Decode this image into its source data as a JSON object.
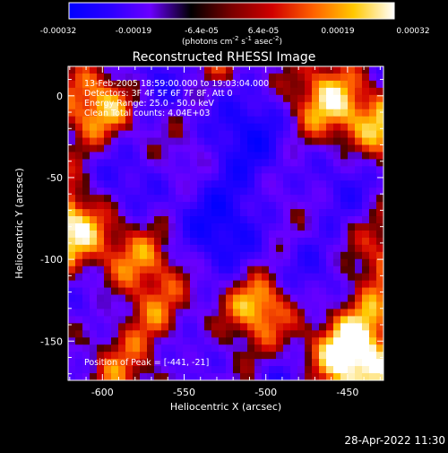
{
  "colorbar": {
    "ticks": [
      "-0.00032",
      "-0.00019",
      "-6.4e-05",
      "6.4e-05",
      "0.00019",
      "0.00032"
    ],
    "unit_label": "(photons cm",
    "unit_exp1": "-2",
    "unit_mid1": " s",
    "unit_exp2": "-1",
    "unit_mid2": " asec",
    "unit_exp3": "-2",
    "unit_close": ")",
    "range": [
      -0.00032,
      0.00032
    ],
    "colors": [
      "#0000ff",
      "#2a00ff",
      "#6a00ff",
      "#000000",
      "#7a0000",
      "#d00000",
      "#ff6000",
      "#ffc800",
      "#ffffff"
    ]
  },
  "image": {
    "title": "Reconstructed RHESSI Image",
    "info_lines": [
      "13-Feb-2005 18:59:00.000 to 19:03:04.000",
      "Detectors: 3F 4F 5F 6F 7F 8F, Att 0",
      "Energy Range: 25.0 - 50.0 keV",
      "Clean     Total counts: 4.04E+03"
    ],
    "peak_label": "Position of Peak = [-441, -21]",
    "xlabel": "Heliocentric X (arcsec)",
    "ylabel": "Heliocentric Y (arcsec)",
    "xticks": [
      "-600",
      "-550",
      "-500",
      "-450"
    ],
    "yticks": [
      "0",
      "-50",
      "-100",
      "-150"
    ],
    "xlim": [
      -621,
      -428
    ],
    "ylim": [
      -174,
      18
    ],
    "footer_date": "28-Apr-2022 11:30"
  }
}
